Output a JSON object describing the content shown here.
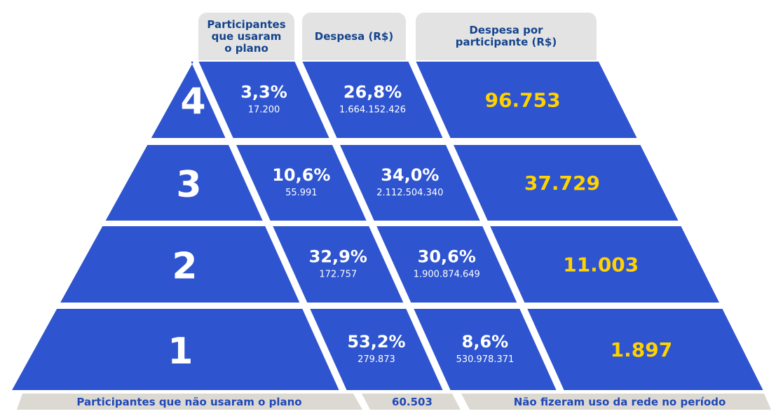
{
  "headers": {
    "participants": "Participantes\nque usaram\no plano",
    "expense": "Despesa (R$)",
    "per_participant": "Despesa por\nparticipante (R$)"
  },
  "tiers": [
    {
      "level": "4",
      "participants_pct": "3,3%",
      "participants_count": "17.200",
      "expense_pct": "26,8%",
      "expense_value": "1.664.152.426",
      "per_participant": "96.753"
    },
    {
      "level": "3",
      "participants_pct": "10,6%",
      "participants_count": "55.991",
      "expense_pct": "34,0%",
      "expense_value": "2.112.504.340",
      "per_participant": "37.729"
    },
    {
      "level": "2",
      "participants_pct": "32,9%",
      "participants_count": "172.757",
      "expense_pct": "30,6%",
      "expense_value": "1.900.874.649",
      "per_participant": "11.003"
    },
    {
      "level": "1",
      "participants_pct": "53,2%",
      "participants_count": "279.873",
      "expense_pct": "8,6%",
      "expense_value": "530.978.371",
      "per_participant": "1.897"
    }
  ],
  "footer": {
    "no_use_label": "Participantes que não usaram o plano",
    "no_use_count": "60.503",
    "no_use_note": "Não fizeram uso da rede no período"
  },
  "colors": {
    "block": "#2e54cf",
    "highlight": "#ffd200",
    "header_bg": "#e3e3e3",
    "header_text": "#14448c",
    "footer_bg": "#dcd9d2",
    "footer_text": "#1f47b8"
  }
}
